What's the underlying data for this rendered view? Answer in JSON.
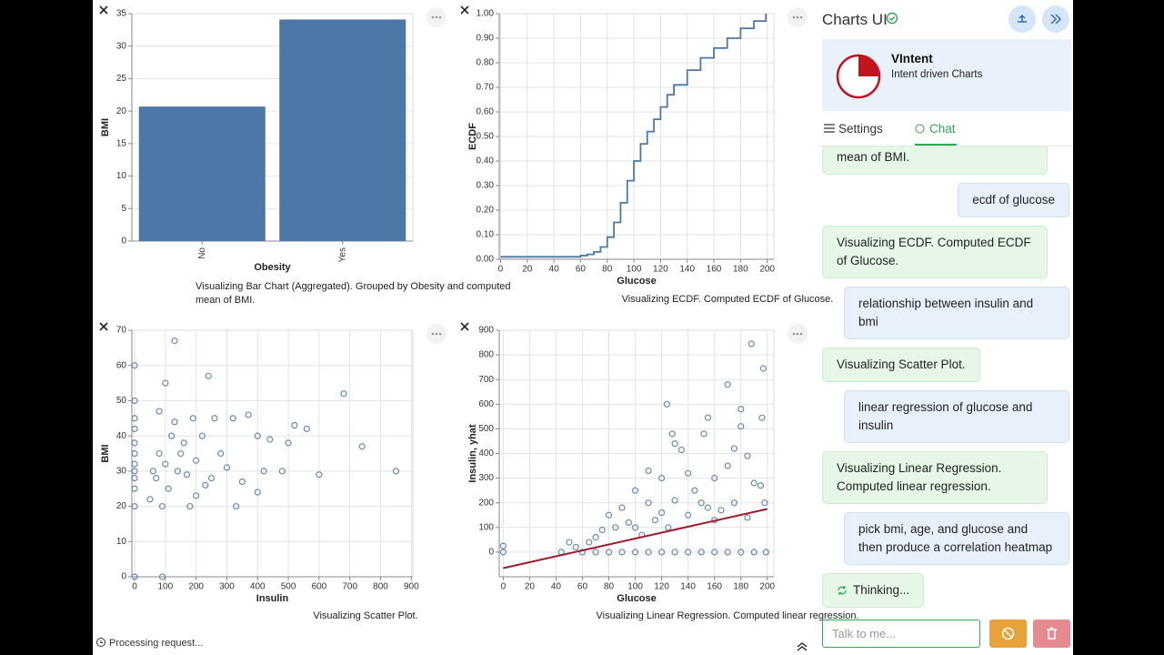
{
  "chart_data": [
    {
      "type": "bar",
      "categories": [
        "No",
        "Yes"
      ],
      "values": [
        20.7,
        34.1
      ],
      "color": "#4c78a8",
      "x_label": "Obesity",
      "y_label": "BMI",
      "ylim": [
        0,
        35
      ],
      "yticks": [
        0,
        5,
        10,
        15,
        20,
        25,
        30,
        35
      ],
      "grid": true,
      "caption": "Visualizing Bar Chart (Aggregated). Grouped by Obesity and computed mean of BMI."
    },
    {
      "type": "line",
      "step": true,
      "color": "#4c78a8",
      "x_label": "Glucose",
      "y_label": "ECDF",
      "x": [
        0,
        50,
        60,
        65,
        70,
        75,
        80,
        85,
        90,
        95,
        100,
        105,
        110,
        115,
        120,
        125,
        130,
        140,
        150,
        160,
        170,
        180,
        190,
        199
      ],
      "values": [
        0.01,
        0.01,
        0.015,
        0.02,
        0.03,
        0.05,
        0.09,
        0.15,
        0.23,
        0.32,
        0.4,
        0.47,
        0.52,
        0.57,
        0.62,
        0.67,
        0.71,
        0.77,
        0.82,
        0.86,
        0.9,
        0.94,
        0.97,
        1.0
      ],
      "xlim": [
        -1,
        205
      ],
      "xticks": [
        0,
        20,
        40,
        60,
        80,
        100,
        120,
        140,
        160,
        180,
        200
      ],
      "ylim": [
        0,
        1
      ],
      "yticks": [
        {
          "value": 0,
          "label": "0.00"
        },
        {
          "value": 0.1,
          "label": "0.10"
        },
        {
          "value": 0.2,
          "label": "0.20"
        },
        {
          "value": 0.3,
          "label": "0.30"
        },
        {
          "value": 0.4,
          "label": "0.40"
        },
        {
          "value": 0.5,
          "label": "0.50"
        },
        {
          "value": 0.6,
          "label": "0.60"
        },
        {
          "value": 0.7,
          "label": "0.70"
        },
        {
          "value": 0.8,
          "label": "0.80"
        },
        {
          "value": 0.9,
          "label": "0.90"
        },
        {
          "value": 1,
          "label": "1.00"
        }
      ],
      "grid": true,
      "caption": "Visualizing ECDF. Computed ECDF of Glucose."
    },
    {
      "type": "scatter",
      "color": "#4c78a8",
      "x_label": "Insulin",
      "y_label": "BMI",
      "x": [
        0,
        0,
        0,
        0,
        0,
        0,
        0,
        0,
        0,
        0,
        0,
        0,
        90,
        130,
        240,
        680,
        740,
        850,
        600,
        500,
        480,
        420,
        400,
        330,
        180,
        100,
        80,
        120,
        150,
        60,
        70,
        100,
        110,
        140,
        160,
        200,
        220,
        250,
        280,
        300,
        320,
        350,
        370,
        400,
        440,
        520,
        560,
        50,
        90,
        200,
        260,
        190,
        130,
        80,
        170,
        230
      ],
      "values": [
        0,
        20,
        25,
        28,
        30,
        32,
        35,
        38,
        42,
        45,
        50,
        60,
        0,
        67,
        57,
        52,
        37,
        30,
        29,
        38,
        30,
        30,
        24,
        20,
        20,
        55,
        47,
        40,
        35,
        30,
        28,
        32,
        25,
        30,
        38,
        33,
        40,
        28,
        35,
        31,
        45,
        27,
        46,
        40,
        39,
        43,
        42,
        22,
        20,
        23,
        45,
        45,
        44,
        35,
        29,
        26
      ],
      "xlim": [
        -9,
        905
      ],
      "xticks": [
        0,
        100,
        200,
        300,
        400,
        500,
        600,
        700,
        800,
        900
      ],
      "ylim": [
        0,
        70
      ],
      "yticks": [
        0,
        10,
        20,
        30,
        40,
        50,
        60,
        70
      ],
      "grid": true,
      "caption": "Visualizing Scatter Plot."
    },
    {
      "type": "scatter",
      "color": "#4c78a8",
      "x_label": "Glucose",
      "y_label": "Insulin, yhat",
      "x": [
        0,
        0,
        44,
        60,
        70,
        80,
        90,
        100,
        110,
        120,
        130,
        140,
        150,
        160,
        170,
        180,
        190,
        199,
        124,
        188,
        197,
        170,
        180,
        196,
        155,
        180,
        152,
        128,
        130,
        135,
        110,
        120,
        140,
        160,
        170,
        190,
        100,
        110,
        90,
        80,
        85,
        95,
        100,
        120,
        130,
        150,
        140,
        160,
        165,
        175,
        185,
        70,
        65,
        75,
        105,
        115,
        125,
        145,
        155,
        195,
        198,
        185,
        175,
        50,
        55
      ],
      "values": [
        0,
        25,
        0,
        0,
        0,
        0,
        0,
        0,
        0,
        0,
        0,
        0,
        0,
        0,
        0,
        0,
        0,
        0,
        600,
        845,
        745,
        680,
        580,
        545,
        545,
        510,
        480,
        480,
        440,
        415,
        330,
        300,
        320,
        300,
        350,
        280,
        250,
        200,
        180,
        150,
        100,
        120,
        100,
        160,
        210,
        200,
        150,
        130,
        170,
        200,
        140,
        60,
        40,
        90,
        70,
        130,
        100,
        250,
        180,
        270,
        200,
        390,
        420,
        40,
        20
      ],
      "line": {
        "x": [
          0,
          200
        ],
        "y": [
          -65,
          175
        ],
        "color": "#a01c2c"
      },
      "xlim": [
        -3,
        205
      ],
      "xticks": [
        0,
        20,
        40,
        60,
        80,
        100,
        120,
        140,
        160,
        180,
        200
      ],
      "ylim": [
        -100,
        900
      ],
      "yticks": [
        0,
        100,
        200,
        300,
        400,
        500,
        600,
        700,
        800,
        900
      ],
      "grid": true,
      "caption": "Visualizing Linear Regression. Computed linear regression."
    }
  ],
  "status": "Processing request...",
  "panel": {
    "title": "Charts UI",
    "card_title": "VIntent",
    "card_subtitle": "Intent driven Charts",
    "tabs": [
      "Settings",
      "Chat"
    ],
    "messages": [
      {
        "role": "bot",
        "text": "Visualizing Bar Chart (Aggregated). Grouped by Obesity and computed mean of BMI."
      },
      {
        "role": "user",
        "text": "ecdf of glucose"
      },
      {
        "role": "bot",
        "text": "Visualizing ECDF. Computed ECDF of Glucose."
      },
      {
        "role": "user",
        "text": "relationship between insulin and bmi"
      },
      {
        "role": "bot",
        "text": "Visualizing Scatter Plot."
      },
      {
        "role": "user",
        "text": "linear regression of glucose and insulin"
      },
      {
        "role": "bot",
        "text": "Visualizing Linear Regression. Computed linear regression."
      },
      {
        "role": "user",
        "text": "pick bmi, age, and glucose and then produce a correlation heatmap"
      }
    ],
    "thinking": "Thinking...",
    "input_placeholder": "Talk to me..."
  }
}
